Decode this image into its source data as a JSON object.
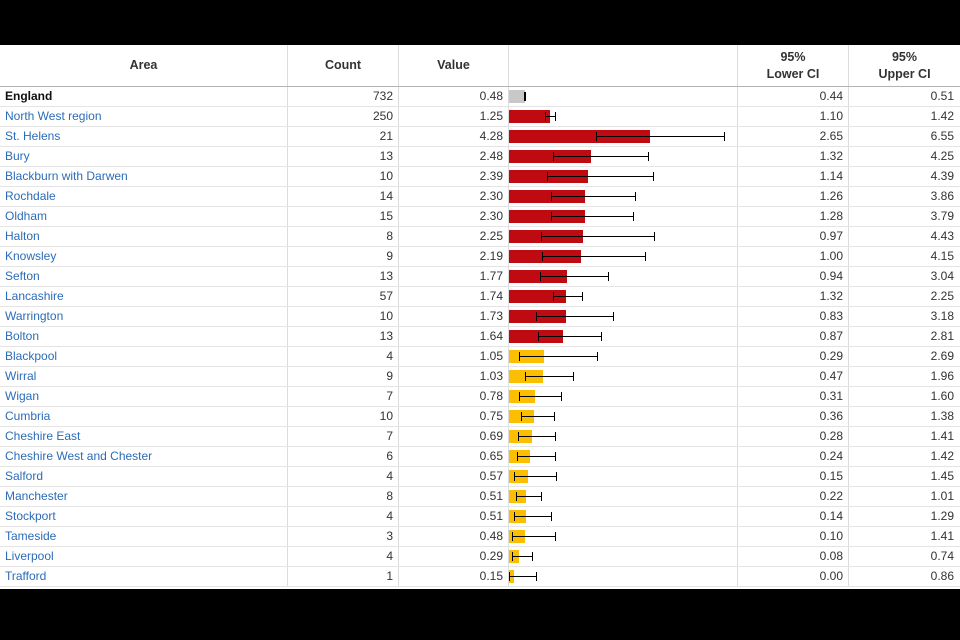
{
  "colors": {
    "page_bg": "#000000",
    "panel_bg": "#ffffff",
    "link": "#2b6cb8",
    "text": "#333333",
    "bar_worse": "#bf0a12",
    "bar_similar": "#fcbe00",
    "bar_benchmark": "#c8c8c8",
    "whisker": "#000000",
    "row_divider": "#e4e4e4",
    "column_divider": "#dcdcdc",
    "header_divider": "#b3b3b3"
  },
  "table": {
    "headers": {
      "area": "Area",
      "count": "Count",
      "value": "Value",
      "lower_ci_line1": "95%",
      "lower_ci_line2": "Lower CI",
      "upper_ci_line1": "95%",
      "upper_ci_line2": "Upper CI"
    }
  },
  "chart_data": {
    "type": "bar",
    "orientation": "horizontal",
    "title": "",
    "xlabel": "Value",
    "value_axis_range": [
      0,
      6.9
    ],
    "grid": false,
    "legend": "bar color = comparison with England benchmark (worse = red, similar = amber, benchmark = grey); whiskers = 95% confidence interval",
    "columns": [
      "Area",
      "Count",
      "Value",
      "95% Lower CI",
      "95% Upper CI"
    ],
    "rows": [
      {
        "area": "England",
        "count": "732",
        "value": "0.48",
        "lower": "0.44",
        "upper": "0.51",
        "significance": "benchmark"
      },
      {
        "area": "North West region",
        "count": "250",
        "value": "1.25",
        "lower": "1.10",
        "upper": "1.42",
        "significance": "worse"
      },
      {
        "area": "St. Helens",
        "count": "21",
        "value": "4.28",
        "lower": "2.65",
        "upper": "6.55",
        "significance": "worse"
      },
      {
        "area": "Bury",
        "count": "13",
        "value": "2.48",
        "lower": "1.32",
        "upper": "4.25",
        "significance": "worse"
      },
      {
        "area": "Blackburn with Darwen",
        "count": "10",
        "value": "2.39",
        "lower": "1.14",
        "upper": "4.39",
        "significance": "worse"
      },
      {
        "area": "Rochdale",
        "count": "14",
        "value": "2.30",
        "lower": "1.26",
        "upper": "3.86",
        "significance": "worse"
      },
      {
        "area": "Oldham",
        "count": "15",
        "value": "2.30",
        "lower": "1.28",
        "upper": "3.79",
        "significance": "worse"
      },
      {
        "area": "Halton",
        "count": "8",
        "value": "2.25",
        "lower": "0.97",
        "upper": "4.43",
        "significance": "worse"
      },
      {
        "area": "Knowsley",
        "count": "9",
        "value": "2.19",
        "lower": "1.00",
        "upper": "4.15",
        "significance": "worse"
      },
      {
        "area": "Sefton",
        "count": "13",
        "value": "1.77",
        "lower": "0.94",
        "upper": "3.04",
        "significance": "worse"
      },
      {
        "area": "Lancashire",
        "count": "57",
        "value": "1.74",
        "lower": "1.32",
        "upper": "2.25",
        "significance": "worse"
      },
      {
        "area": "Warrington",
        "count": "10",
        "value": "1.73",
        "lower": "0.83",
        "upper": "3.18",
        "significance": "worse"
      },
      {
        "area": "Bolton",
        "count": "13",
        "value": "1.64",
        "lower": "0.87",
        "upper": "2.81",
        "significance": "worse"
      },
      {
        "area": "Blackpool",
        "count": "4",
        "value": "1.05",
        "lower": "0.29",
        "upper": "2.69",
        "significance": "similar"
      },
      {
        "area": "Wirral",
        "count": "9",
        "value": "1.03",
        "lower": "0.47",
        "upper": "1.96",
        "significance": "similar"
      },
      {
        "area": "Wigan",
        "count": "7",
        "value": "0.78",
        "lower": "0.31",
        "upper": "1.60",
        "significance": "similar"
      },
      {
        "area": "Cumbria",
        "count": "10",
        "value": "0.75",
        "lower": "0.36",
        "upper": "1.38",
        "significance": "similar"
      },
      {
        "area": "Cheshire East",
        "count": "7",
        "value": "0.69",
        "lower": "0.28",
        "upper": "1.41",
        "significance": "similar"
      },
      {
        "area": "Cheshire West and Chester",
        "count": "6",
        "value": "0.65",
        "lower": "0.24",
        "upper": "1.42",
        "significance": "similar"
      },
      {
        "area": "Salford",
        "count": "4",
        "value": "0.57",
        "lower": "0.15",
        "upper": "1.45",
        "significance": "similar"
      },
      {
        "area": "Manchester",
        "count": "8",
        "value": "0.51",
        "lower": "0.22",
        "upper": "1.01",
        "significance": "similar"
      },
      {
        "area": "Stockport",
        "count": "4",
        "value": "0.51",
        "lower": "0.14",
        "upper": "1.29",
        "significance": "similar"
      },
      {
        "area": "Tameside",
        "count": "3",
        "value": "0.48",
        "lower": "0.10",
        "upper": "1.41",
        "significance": "similar"
      },
      {
        "area": "Liverpool",
        "count": "4",
        "value": "0.29",
        "lower": "0.08",
        "upper": "0.74",
        "significance": "similar"
      },
      {
        "area": "Trafford",
        "count": "1",
        "value": "0.15",
        "lower": "0.00",
        "upper": "0.86",
        "significance": "similar"
      }
    ]
  }
}
